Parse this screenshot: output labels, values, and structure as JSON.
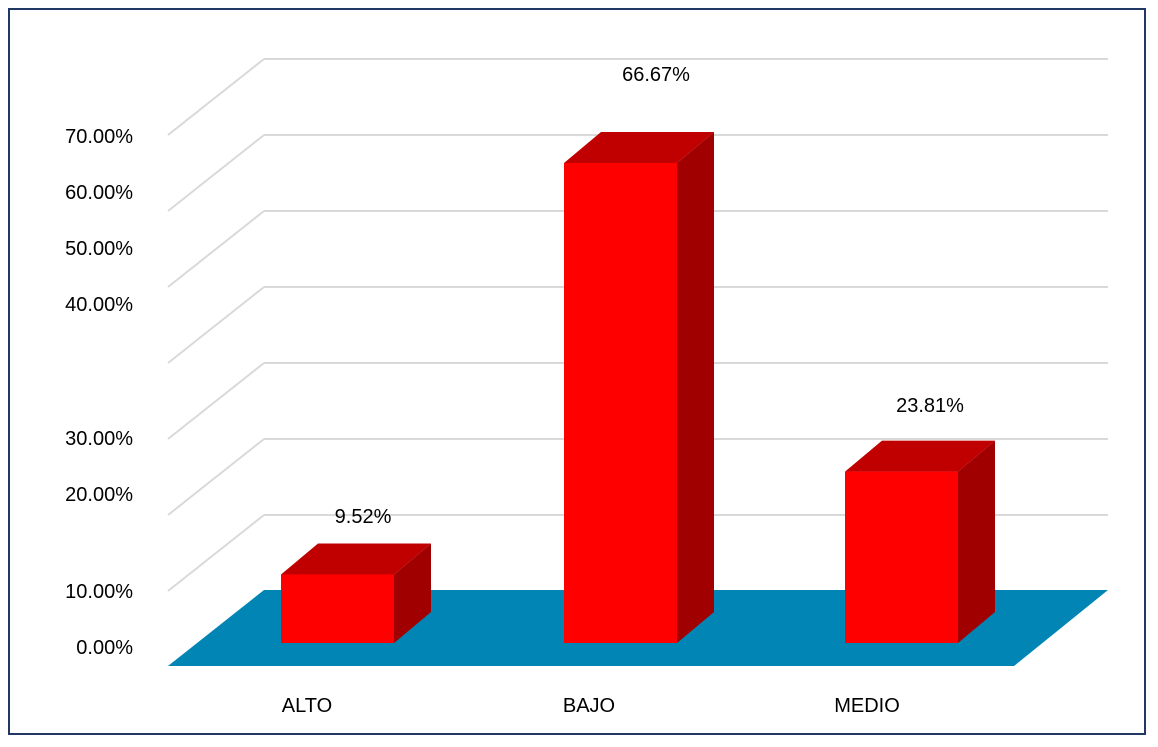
{
  "chart_data": {
    "type": "bar",
    "style": "3d-column",
    "categories": [
      "ALTO",
      "BAJO",
      "MEDIO"
    ],
    "values": [
      9.52,
      66.67,
      23.81
    ],
    "value_labels": [
      "9.52%",
      "66.67%",
      "23.81%"
    ],
    "ytick_labels": [
      "0.00%",
      "10.00%",
      "20.00%",
      "30.00%",
      "40.00%",
      "50.00%",
      "60.00%",
      "70.00%"
    ],
    "ylim": [
      0,
      70
    ],
    "grid": true,
    "title": "",
    "xlabel": "",
    "ylabel": "",
    "colors": {
      "bar_front": "#ff0000",
      "bar_top": "#c00000",
      "bar_side": "#a00000",
      "floor": "#0085b5",
      "gridline": "#d9d9d9",
      "border": "#1f3864"
    }
  }
}
